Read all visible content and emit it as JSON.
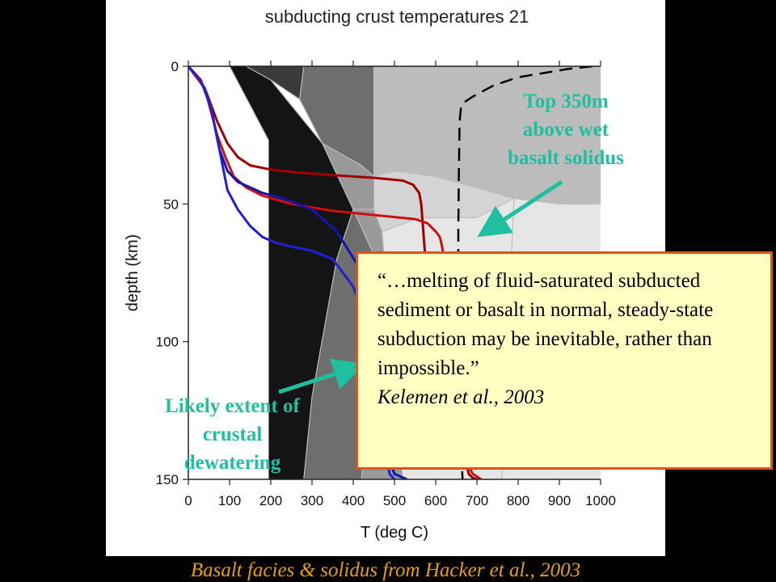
{
  "chart_data": {
    "type": "line",
    "title": "subducting crust temperatures 21",
    "xlabel": "T (deg C)",
    "ylabel": "depth (km)",
    "xlim": [
      0,
      1000
    ],
    "ylim": [
      0,
      150
    ],
    "y_inverted": true,
    "x_ticks": [
      0,
      100,
      200,
      300,
      400,
      500,
      600,
      700,
      800,
      900,
      1000
    ],
    "y_ticks": [
      0,
      50,
      100,
      150
    ],
    "facies_background": {
      "description_colors": [
        "#ffffff",
        "#141414",
        "#3a3a3a",
        "#6e6e6e",
        "#999999",
        "#bcbcbc",
        "#d4d4d4",
        "#e6e6e6"
      ],
      "polygons": [
        {
          "fill": "#ffffff",
          "points": [
            [
              0,
              0
            ],
            [
              100,
              0
            ],
            [
              195,
              27
            ],
            [
              195,
              150
            ],
            [
              0,
              150
            ]
          ]
        },
        {
          "fill": "#141414",
          "points": [
            [
              100,
              0
            ],
            [
              140,
              0
            ],
            [
              200,
              5
            ],
            [
              325,
              28
            ],
            [
              400,
              52
            ],
            [
              470,
              75
            ],
            [
              420,
              150
            ],
            [
              195,
              150
            ],
            [
              195,
              27
            ]
          ]
        },
        {
          "fill": "#3a3a3a",
          "points": [
            [
              140,
              0
            ],
            [
              280,
              0
            ],
            [
              270,
              12
            ],
            [
              200,
              5
            ]
          ]
        },
        {
          "fill": "#6e6e6e",
          "points": [
            [
              280,
              0
            ],
            [
              450,
              0
            ],
            [
              450,
              25
            ],
            [
              450,
              40
            ],
            [
              420,
              36
            ],
            [
              325,
              28
            ],
            [
              270,
              12
            ]
          ]
        },
        {
          "fill": "#6e6e6e",
          "points": [
            [
              470,
              75
            ],
            [
              400,
              52
            ],
            [
              360,
              70
            ],
            [
              300,
              120
            ],
            [
              280,
              150
            ],
            [
              420,
              150
            ]
          ]
        },
        {
          "fill": "#999999",
          "points": [
            [
              325,
              28
            ],
            [
              420,
              36
            ],
            [
              450,
              40
            ],
            [
              450,
              52
            ],
            [
              400,
              52
            ]
          ]
        },
        {
          "fill": "#999999",
          "points": [
            [
              400,
              52
            ],
            [
              450,
              52
            ],
            [
              470,
              60
            ],
            [
              520,
              150
            ],
            [
              420,
              150
            ],
            [
              470,
              75
            ]
          ]
        },
        {
          "fill": "#bcbcbc",
          "points": [
            [
              450,
              0
            ],
            [
              1000,
              0
            ],
            [
              1000,
              50
            ],
            [
              900,
              50
            ],
            [
              790,
              48
            ],
            [
              720,
              45
            ],
            [
              600,
              40
            ],
            [
              560,
              35
            ],
            [
              450,
              25
            ]
          ]
        },
        {
          "fill": "#bcbcbc",
          "points": [
            [
              450,
              25
            ],
            [
              560,
              35
            ],
            [
              600,
              40
            ],
            [
              500,
              38
            ],
            [
              450,
              40
            ]
          ]
        },
        {
          "fill": "#d4d4d4",
          "points": [
            [
              450,
              40
            ],
            [
              500,
              38
            ],
            [
              600,
              40
            ],
            [
              720,
              45
            ],
            [
              790,
              48
            ],
            [
              700,
              55
            ],
            [
              560,
              55
            ],
            [
              470,
              60
            ],
            [
              450,
              52
            ]
          ]
        },
        {
          "fill": "#e6e6e6",
          "points": [
            [
              470,
              60
            ],
            [
              560,
              55
            ],
            [
              700,
              55
            ],
            [
              790,
              48
            ],
            [
              900,
              50
            ],
            [
              1000,
              50
            ],
            [
              1000,
              150
            ],
            [
              520,
              150
            ]
          ]
        }
      ],
      "lines": [
        [
          [
            100,
            0
          ],
          [
            195,
            27
          ]
        ],
        [
          [
            140,
            0
          ],
          [
            200,
            5
          ]
        ],
        [
          [
            200,
            5
          ],
          [
            270,
            12
          ]
        ],
        [
          [
            270,
            12
          ],
          [
            280,
            0
          ]
        ],
        [
          [
            270,
            12
          ],
          [
            325,
            28
          ]
        ],
        [
          [
            200,
            5
          ],
          [
            325,
            28
          ]
        ],
        [
          [
            325,
            28
          ],
          [
            420,
            36
          ]
        ],
        [
          [
            420,
            36
          ],
          [
            450,
            40
          ]
        ],
        [
          [
            450,
            0
          ],
          [
            450,
            40
          ]
        ],
        [
          [
            450,
            25
          ],
          [
            560,
            35
          ]
        ],
        [
          [
            560,
            35
          ],
          [
            600,
            40
          ]
        ],
        [
          [
            450,
            40
          ],
          [
            500,
            38
          ]
        ],
        [
          [
            500,
            38
          ],
          [
            600,
            40
          ]
        ],
        [
          [
            600,
            40
          ],
          [
            720,
            45
          ]
        ],
        [
          [
            720,
            45
          ],
          [
            790,
            48
          ]
        ],
        [
          [
            790,
            48
          ],
          [
            900,
            50
          ]
        ],
        [
          [
            900,
            50
          ],
          [
            1000,
            50
          ]
        ],
        [
          [
            790,
            48
          ],
          [
            700,
            55
          ]
        ],
        [
          [
            700,
            55
          ],
          [
            560,
            55
          ]
        ],
        [
          [
            560,
            55
          ],
          [
            470,
            60
          ]
        ],
        [
          [
            450,
            52
          ],
          [
            470,
            60
          ]
        ],
        [
          [
            400,
            52
          ],
          [
            450,
            52
          ]
        ],
        [
          [
            325,
            28
          ],
          [
            400,
            52
          ]
        ],
        [
          [
            400,
            52
          ],
          [
            470,
            75
          ]
        ],
        [
          [
            470,
            60
          ],
          [
            520,
            150
          ]
        ],
        [
          [
            470,
            75
          ],
          [
            420,
            150
          ]
        ],
        [
          [
            400,
            52
          ],
          [
            360,
            70
          ]
        ],
        [
          [
            360,
            70
          ],
          [
            300,
            120
          ]
        ],
        [
          [
            300,
            120
          ],
          [
            280,
            150
          ]
        ],
        [
          [
            790,
            48
          ],
          [
            760,
            150
          ]
        ]
      ]
    },
    "series": [
      {
        "color": "#a00000",
        "style": "solid",
        "x": [
          0,
          40,
          70,
          95,
          120,
          150,
          200,
          260,
          350,
          450,
          520,
          545,
          560,
          565,
          570,
          575,
          580,
          600,
          640,
          660,
          670,
          672,
          675,
          680,
          690,
          700
        ],
        "y": [
          0,
          8,
          20,
          28,
          33,
          36,
          37.5,
          38.5,
          39.5,
          40.5,
          41.5,
          43,
          46,
          50,
          60,
          70,
          80,
          95,
          120,
          135,
          140,
          142,
          145,
          148,
          149.5,
          150
        ]
      },
      {
        "color": "#cc1010",
        "style": "solid",
        "x": [
          0,
          40,
          70,
          90,
          110,
          140,
          180,
          250,
          350,
          450,
          550,
          580,
          600,
          610,
          615,
          620,
          630,
          650,
          665,
          672,
          678,
          690,
          710
        ],
        "y": [
          0,
          8,
          25,
          33,
          40,
          44,
          47,
          50,
          52.5,
          54,
          55.5,
          57,
          60,
          62,
          65,
          70,
          80,
          100,
          120,
          135,
          145,
          148,
          150
        ]
      },
      {
        "color": "#1515b0",
        "style": "solid",
        "x": [
          0,
          30,
          55,
          75,
          95,
          120,
          150,
          180,
          230,
          300,
          360,
          410,
          440,
          460,
          470,
          478,
          484,
          488,
          492,
          500,
          530
        ],
        "y": [
          0,
          5,
          15,
          30,
          38,
          42,
          44,
          46,
          48,
          52,
          60,
          72,
          85,
          100,
          110,
          120,
          130,
          140,
          145,
          148,
          150
        ]
      },
      {
        "color": "#2020d0",
        "style": "solid",
        "x": [
          0,
          30,
          55,
          75,
          95,
          120,
          150,
          180,
          210,
          250,
          300,
          350,
          400,
          430,
          450,
          465,
          475,
          480,
          485,
          488,
          500
        ],
        "y": [
          0,
          5,
          15,
          30,
          45,
          52,
          58,
          62,
          64,
          65.5,
          67,
          70,
          80,
          92,
          105,
          118,
          130,
          140,
          145,
          148,
          150
        ]
      },
      {
        "color": "#000000",
        "style": "dashed",
        "x": [
          980,
          920,
          860,
          800,
          740,
          690,
          670,
          662,
          658,
          656,
          655,
          655,
          658,
          665
        ],
        "y": [
          0,
          1,
          2.5,
          4,
          7,
          11,
          13,
          14,
          20,
          40,
          60,
          90,
          120,
          150
        ]
      }
    ]
  },
  "annotations": {
    "top_label": [
      "Top 350m",
      "above wet",
      "basalt solidus"
    ],
    "likely_label": [
      "Likely extent of",
      "crustal",
      "dewatering"
    ]
  },
  "quote": {
    "text": "“…melting of fluid-saturated subducted sediment or basalt in normal, steady-state subduction may be inevitable, rather than impossible.”",
    "citation": "Kelemen et al., 2003"
  },
  "footer": {
    "credit": "Basalt facies & solidus from Hacker et al., 2003"
  },
  "colors": {
    "annotation_text": "#1fbf9f",
    "quote_border": "#e0531f",
    "quote_background": "#ffffc2",
    "footer_text": "#e8a000"
  }
}
